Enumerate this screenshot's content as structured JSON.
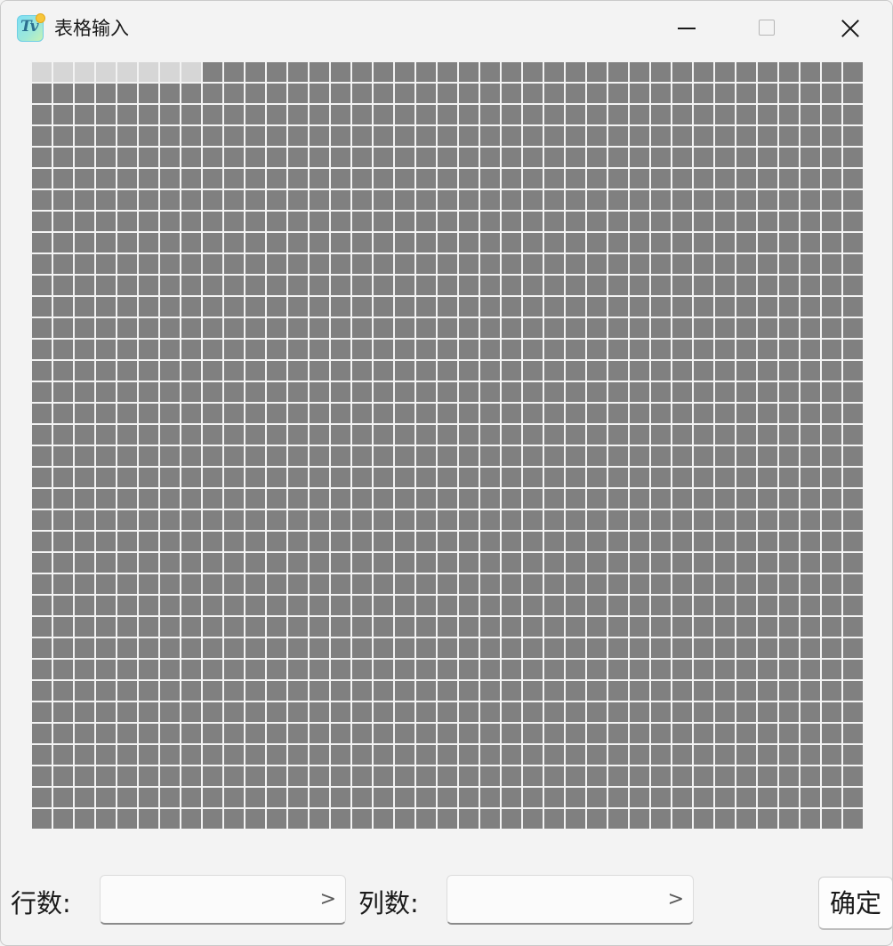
{
  "window": {
    "title": "表格输入",
    "app_icon": "table-input-app-icon",
    "controls": [
      "minimize-icon",
      "maximize-icon",
      "close-icon"
    ]
  },
  "grid": {
    "rows": 36,
    "columns": 39,
    "selected_row": 1,
    "selected_columns": 8,
    "cell_color": "#808080",
    "selected_color": "#d6d6d6"
  },
  "rows_field": {
    "label": "行数:",
    "value": "",
    "arrow": ">"
  },
  "cols_field": {
    "label": "列数:",
    "value": "",
    "arrow": ">"
  },
  "confirm_button": {
    "label": "确定"
  }
}
